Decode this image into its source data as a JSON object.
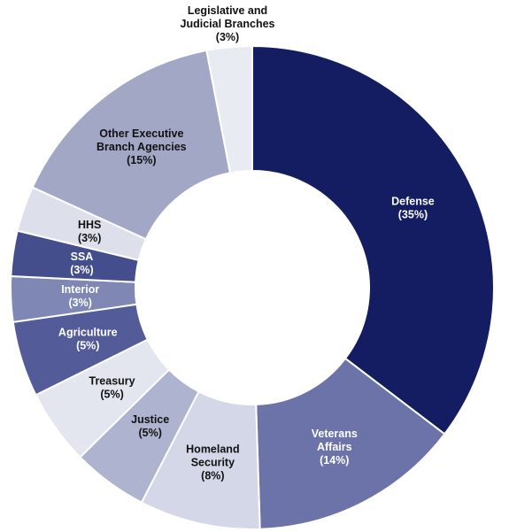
{
  "chart_data": {
    "type": "pie",
    "donut": true,
    "slices": [
      {
        "label_lines": [
          "Defense"
        ],
        "pct_label": "(35%)",
        "value": 35,
        "color": "#141c62",
        "text_color": "#ffffff"
      },
      {
        "label_lines": [
          "Veterans",
          "Affairs"
        ],
        "pct_label": "(14%)",
        "value": 14,
        "color": "#6b73a8",
        "text_color": "#ffffff"
      },
      {
        "label_lines": [
          "Homeland",
          "Security"
        ],
        "pct_label": "(8%)",
        "value": 8,
        "color": "#d4d7e8",
        "text_color": "#111111"
      },
      {
        "label_lines": [
          "Justice"
        ],
        "pct_label": "(5%)",
        "value": 5,
        "color": "#aeb3cf",
        "text_color": "#111111"
      },
      {
        "label_lines": [
          "Treasury"
        ],
        "pct_label": "(5%)",
        "value": 5,
        "color": "#e3e5ef",
        "text_color": "#111111"
      },
      {
        "label_lines": [
          "Agriculture"
        ],
        "pct_label": "(5%)",
        "value": 5,
        "color": "#535c98",
        "text_color": "#ffffff"
      },
      {
        "label_lines": [
          "Interior"
        ],
        "pct_label": "(3%)",
        "value": 3,
        "color": "#7f87b4",
        "text_color": "#ffffff"
      },
      {
        "label_lines": [
          "SSA"
        ],
        "pct_label": "(3%)",
        "value": 3,
        "color": "#454e8c",
        "text_color": "#ffffff"
      },
      {
        "label_lines": [
          "HHS"
        ],
        "pct_label": "(3%)",
        "value": 3,
        "color": "#dddfeb",
        "text_color": "#111111"
      },
      {
        "label_lines": [
          "Other Executive",
          "Branch Agencies"
        ],
        "pct_label": "(15%)",
        "value": 15,
        "color": "#a2a7c6",
        "text_color": "#111111"
      },
      {
        "label_lines": [
          "Legislative and",
          "Judicial Branches"
        ],
        "pct_label": "(3%)",
        "value": 3,
        "color": "#e9ebf3",
        "text_color": "#111111",
        "label_outside": true
      }
    ]
  }
}
